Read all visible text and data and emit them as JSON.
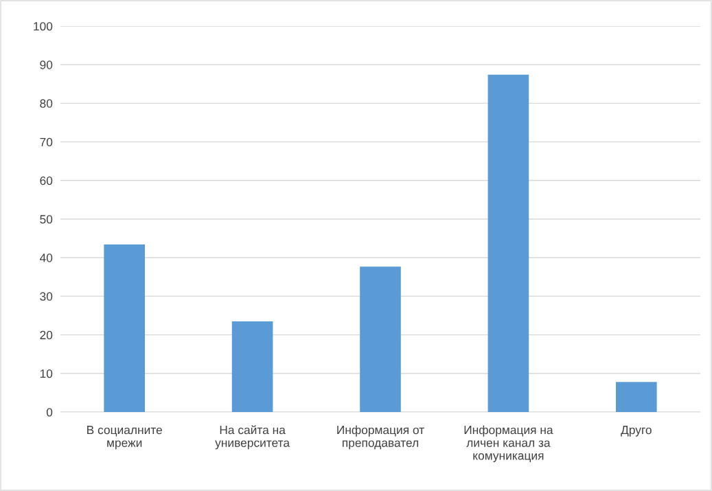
{
  "chart_data": {
    "type": "bar",
    "categories": [
      "В социалните\nмрежи",
      "На сайта на\nуниверситета",
      "Информация от\nпреподавател",
      "Информация на\nличен канал за\nкомуникация",
      "Друго"
    ],
    "values": [
      43.4,
      23.5,
      37.7,
      87.4,
      7.8
    ],
    "color": "#5b9bd5",
    "ylim": [
      0,
      100
    ],
    "yticks": [
      0,
      10,
      20,
      30,
      40,
      50,
      60,
      70,
      80,
      90,
      100
    ],
    "grid": "y"
  }
}
